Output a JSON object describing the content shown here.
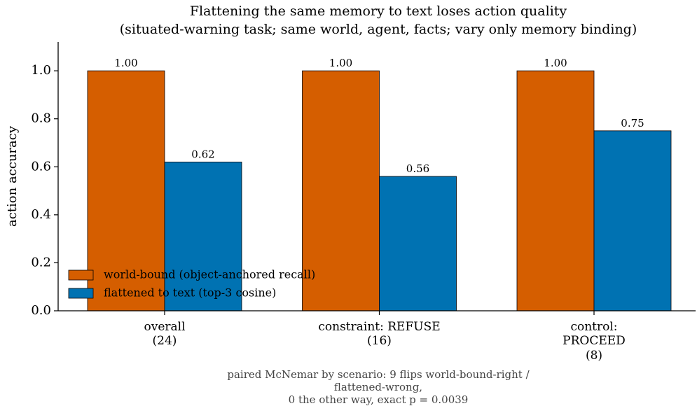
{
  "chart_data": {
    "type": "bar",
    "title": "Flattening the same memory to text loses action quality",
    "subtitle": "(situated-warning task; same world, agent, facts; vary only memory binding)",
    "ylabel": "action accuracy",
    "categories": [
      "overall\n(24)",
      "constraint: REFUSE\n(16)",
      "control: PROCEED\n(8)"
    ],
    "series": [
      {
        "name": "world-bound (object-anchored recall)",
        "color": "#d55e00",
        "values": [
          1,
          1,
          1
        ],
        "value_labels": [
          "1.00",
          "1.00",
          "1.00"
        ]
      },
      {
        "name": "flattened to text (top-3 cosine)",
        "color": "#0072b2",
        "values": [
          0.62,
          0.56,
          0.75
        ],
        "value_labels": [
          "0.62",
          "0.56",
          "0.75"
        ]
      }
    ],
    "ylim": [
      0,
      1.12
    ],
    "yticks": [
      {
        "value": 0,
        "label": "0.0"
      },
      0.2,
      0.4,
      0.6,
      0.8,
      {
        "value": 1,
        "label": "1.0"
      }
    ],
    "legend": "lower left",
    "annotation": "paired McNemar by scenario: 9 flips world-bound-right / flattened-wrong,\n0 the other way, exact p = 0.0039"
  }
}
